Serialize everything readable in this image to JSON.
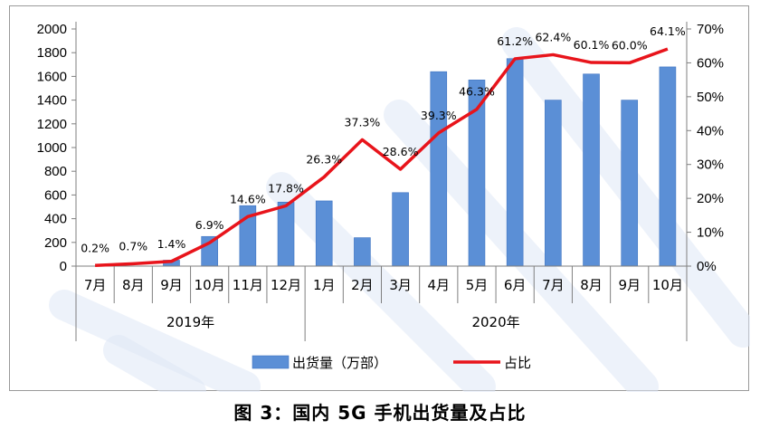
{
  "caption": "图 3：国内 5G 手机出货量及占比",
  "colors": {
    "bar": "#5b8fd6",
    "bar_dark": "#3f74c2",
    "line": "#e8141b"
  },
  "chart_data": {
    "type": "bar",
    "combo": "bar + line (secondary y-axis)",
    "categories": [
      "7月",
      "8月",
      "9月",
      "10月",
      "11月",
      "12月",
      "1月",
      "2月",
      "3月",
      "4月",
      "5月",
      "6月",
      "7月",
      "8月",
      "9月",
      "10月"
    ],
    "year_groups": [
      {
        "label": "2019年",
        "count": 6
      },
      {
        "label": "2020年",
        "count": 10
      }
    ],
    "series": [
      {
        "name": "出货量（万部）",
        "type": "bar",
        "axis": "left",
        "values": [
          0,
          0,
          50,
          250,
          510,
          540,
          550,
          240,
          620,
          1640,
          1570,
          1750,
          1400,
          1620,
          1400,
          1680
        ]
      },
      {
        "name": "占比",
        "type": "line",
        "axis": "right",
        "values": [
          0.2,
          0.7,
          1.4,
          6.9,
          14.6,
          17.8,
          26.3,
          37.3,
          28.6,
          39.3,
          46.3,
          61.2,
          62.4,
          60.1,
          60.0,
          64.1
        ],
        "labels": [
          "0.2%",
          "0.7%",
          "1.4%",
          "6.9%",
          "14.6%",
          "17.8%",
          "26.3%",
          "37.3%",
          "28.6%",
          "39.3%",
          "46.3%",
          "61.2%",
          "62.4%",
          "60.1%",
          "60.0%",
          "64.1%"
        ]
      }
    ],
    "ylim_left": [
      0,
      2000
    ],
    "yticks_left": [
      "0",
      "200",
      "400",
      "600",
      "800",
      "1000",
      "1200",
      "1400",
      "1600",
      "1800",
      "2000"
    ],
    "ylim_right": [
      0,
      70
    ],
    "yticks_right": [
      "0%",
      "10%",
      "20%",
      "30%",
      "40%",
      "50%",
      "60%",
      "70%"
    ],
    "legend_position": "bottom",
    "grid": false
  }
}
